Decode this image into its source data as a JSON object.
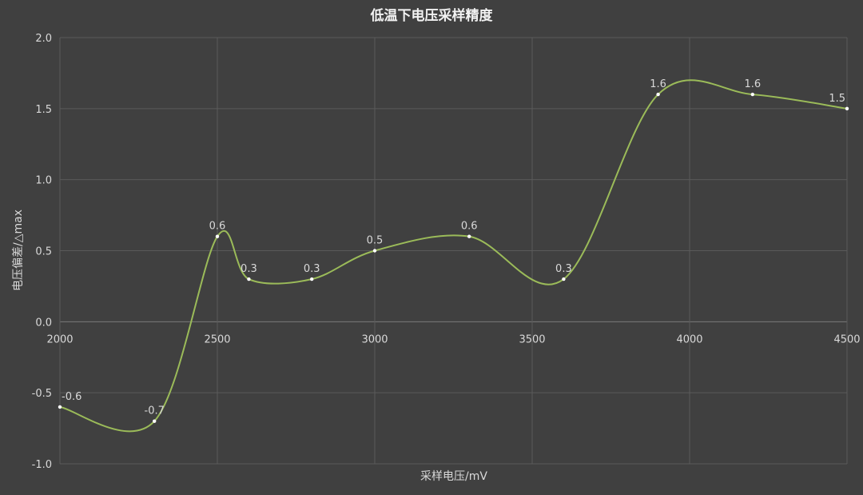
{
  "chart_data": {
    "type": "line",
    "title": "低温下电压采样精度",
    "xlabel": "采样电压/mV",
    "ylabel": "电压偏差/△max",
    "xlim": [
      2000,
      4500
    ],
    "ylim": [
      -1.0,
      2.0
    ],
    "xticks": [
      2000,
      2500,
      3000,
      3500,
      4000,
      4500
    ],
    "yticks": [
      -1.0,
      -0.5,
      0.0,
      0.5,
      1.0,
      1.5,
      2.0
    ],
    "ytick_labels": [
      "-1.0",
      "-0.5",
      "0.0",
      "0.5",
      "1.0",
      "1.5",
      "2.0"
    ],
    "grid": true,
    "smooth": true,
    "series": [
      {
        "x": [
          2000,
          2300,
          2500,
          2600,
          2800,
          3000,
          3300,
          3600,
          3900,
          4200,
          4500
        ],
        "y": [
          -0.6,
          -0.7,
          0.6,
          0.3,
          0.3,
          0.5,
          0.6,
          0.3,
          1.6,
          1.6,
          1.5
        ],
        "labels": [
          "-0.6",
          "-0.7",
          "0.6",
          "0.3",
          "0.3",
          "0.5",
          "0.6",
          "0.3",
          "1.6",
          "1.6",
          "1.5"
        ],
        "color": "#9bbb59"
      }
    ]
  }
}
